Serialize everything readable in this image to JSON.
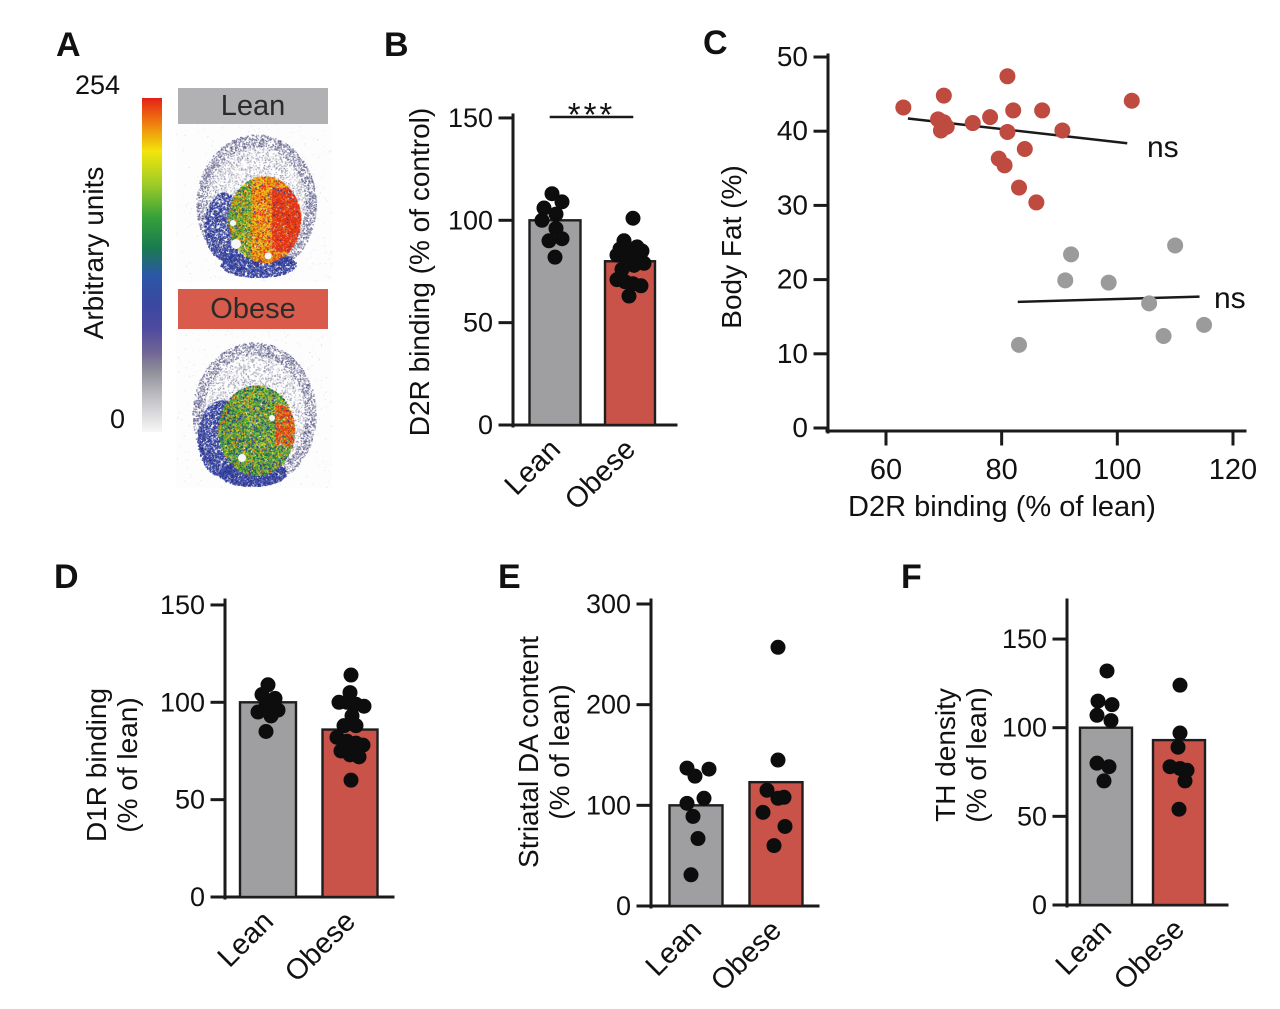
{
  "panel_letters": {
    "A": "A",
    "B": "B",
    "C": "C",
    "D": "D",
    "E": "E",
    "F": "F"
  },
  "colors": {
    "bar_gray": "#9F9FA1",
    "bar_red": "#C95349",
    "bar_stroke": "#1e1e1e",
    "dot_black": "#0d0d0d",
    "scatter_red": "#BF4A3F",
    "scatter_gray": "#9B9B9B",
    "header_gray": "#B1B1B3",
    "header_red": "#D95B4B",
    "axis_black": "#1a1a1a"
  },
  "panelA": {
    "letter": "A",
    "colorbar": {
      "max_label": "254",
      "min_label": "0",
      "axis_label": "Arbitrary units"
    },
    "images": [
      {
        "label": "Lean",
        "header_color": "#B1B1B3",
        "style": "lean"
      },
      {
        "label": "Obese",
        "header_color": "#D95B4B",
        "style": "obese"
      }
    ]
  },
  "chart_data": [
    {
      "panel": "B",
      "type": "bar",
      "ylabel_lines": [
        "D2R binding (% of control)"
      ],
      "categories": [
        "Lean",
        "Obese"
      ],
      "values": [
        100,
        80
      ],
      "bar_colors": [
        "#9F9FA1",
        "#C95349"
      ],
      "yticks": [
        0,
        50,
        100,
        150
      ],
      "ylim": [
        0,
        150
      ],
      "significance": "***",
      "points": [
        [
          [
            113,
            -3
          ],
          [
            109,
            7
          ],
          [
            106,
            -11
          ],
          [
            103,
            1
          ],
          [
            100,
            -13
          ],
          [
            96,
            1
          ],
          [
            91,
            7
          ],
          [
            90,
            -6
          ],
          [
            82,
            0
          ]
        ],
        [
          [
            101,
            3
          ],
          [
            90,
            -6
          ],
          [
            87,
            7
          ],
          [
            86,
            -10
          ],
          [
            85,
            12
          ],
          [
            84,
            0
          ],
          [
            83,
            -13
          ],
          [
            82,
            10
          ],
          [
            80,
            -3
          ],
          [
            79,
            14
          ],
          [
            78,
            4
          ],
          [
            76,
            -8
          ],
          [
            71,
            -13
          ],
          [
            70,
            -5
          ],
          [
            69,
            3
          ],
          [
            68,
            11
          ],
          [
            63,
            -1
          ]
        ]
      ]
    },
    {
      "panel": "C",
      "type": "scatter",
      "xlabel": "D2R binding (% of lean)",
      "ylabel": "Body Fat (%)",
      "xticks": [
        60,
        80,
        100,
        120
      ],
      "yticks": [
        0,
        10,
        20,
        30,
        40,
        50
      ],
      "xlim": [
        50,
        122
      ],
      "ylim": [
        0,
        50
      ],
      "series": [
        {
          "name": "Obese",
          "color": "#BF4A3F",
          "annotation": "ns",
          "trend": [
            64,
            41.7,
            101.5,
            38.4
          ],
          "points": [
            [
              63,
              43.2
            ],
            [
              70,
              44.8
            ],
            [
              81,
              47.4
            ],
            [
              102.5,
              44.1
            ],
            [
              69,
              41.6
            ],
            [
              70,
              41.2
            ],
            [
              70.5,
              40.6
            ],
            [
              69.5,
              40.1
            ],
            [
              75,
              41.1
            ],
            [
              78,
              41.9
            ],
            [
              82,
              42.8
            ],
            [
              87,
              42.8
            ],
            [
              81,
              39.9
            ],
            [
              90.5,
              40.1
            ],
            [
              84,
              37.6
            ],
            [
              79.5,
              36.3
            ],
            [
              80.5,
              35.4
            ],
            [
              83,
              32.4
            ],
            [
              86,
              30.4
            ]
          ]
        },
        {
          "name": "Lean",
          "color": "#9B9B9B",
          "annotation": "ns",
          "trend": [
            83,
            17.0,
            114,
            17.7
          ],
          "points": [
            [
              92,
              23.4
            ],
            [
              110,
              24.6
            ],
            [
              91,
              19.9
            ],
            [
              98.5,
              19.6
            ],
            [
              105.5,
              16.8
            ],
            [
              115,
              13.9
            ],
            [
              108,
              12.4
            ],
            [
              83,
              11.2
            ]
          ]
        }
      ]
    },
    {
      "panel": "D",
      "type": "bar",
      "ylabel_lines": [
        "D1R binding",
        "(% of lean)"
      ],
      "categories": [
        "Lean",
        "Obese"
      ],
      "values": [
        100,
        86
      ],
      "bar_colors": [
        "#9F9FA1",
        "#C95349"
      ],
      "yticks": [
        0,
        50,
        100,
        150
      ],
      "ylim": [
        0,
        150
      ],
      "significance": "",
      "points": [
        [
          [
            109,
            0
          ],
          [
            104,
            -6
          ],
          [
            102,
            7
          ],
          [
            98,
            -2
          ],
          [
            96,
            10
          ],
          [
            95,
            -10
          ],
          [
            93,
            3
          ],
          [
            85,
            -2
          ]
        ],
        [
          [
            114,
            1
          ],
          [
            105,
            0
          ],
          [
            100,
            -11
          ],
          [
            100,
            -3
          ],
          [
            99,
            6
          ],
          [
            98,
            14
          ],
          [
            93,
            2
          ],
          [
            88,
            -6
          ],
          [
            88,
            6
          ],
          [
            82,
            -13
          ],
          [
            80,
            -3
          ],
          [
            79,
            6
          ],
          [
            78,
            13
          ],
          [
            75,
            -9
          ],
          [
            73,
            0
          ],
          [
            72,
            9
          ],
          [
            60,
            1
          ]
        ]
      ]
    },
    {
      "panel": "E",
      "type": "bar",
      "ylabel_lines": [
        "Striatal DA content",
        "(% of lean)"
      ],
      "categories": [
        "Lean",
        "Obese"
      ],
      "values": [
        100,
        123
      ],
      "bar_colors": [
        "#9F9FA1",
        "#C95349"
      ],
      "yticks": [
        0,
        100,
        200,
        300
      ],
      "ylim": [
        0,
        300
      ],
      "significance": "",
      "points": [
        [
          [
            137,
            -9
          ],
          [
            136,
            13
          ],
          [
            129,
            -1
          ],
          [
            107,
            8
          ],
          [
            102,
            -9
          ],
          [
            89,
            -3
          ],
          [
            67,
            2
          ],
          [
            31,
            -5
          ]
        ],
        [
          [
            257,
            2
          ],
          [
            145,
            2
          ],
          [
            115,
            -9
          ],
          [
            108,
            8
          ],
          [
            107,
            2
          ],
          [
            93,
            -13
          ],
          [
            79,
            9
          ],
          [
            60,
            -2
          ]
        ]
      ]
    },
    {
      "panel": "F",
      "type": "bar",
      "ylabel_lines": [
        "TH density",
        "(% of lean)"
      ],
      "categories": [
        "Lean",
        "Obese"
      ],
      "values": [
        100,
        93
      ],
      "bar_colors": [
        "#9F9FA1",
        "#C95349"
      ],
      "yticks": [
        0,
        50,
        100,
        150
      ],
      "ylim": [
        0,
        150
      ],
      "significance": "",
      "points": [
        [
          [
            132,
            1
          ],
          [
            115,
            -8
          ],
          [
            113,
            6
          ],
          [
            107,
            -9
          ],
          [
            104,
            5
          ],
          [
            80,
            -9
          ],
          [
            78,
            3
          ],
          [
            70,
            -2
          ]
        ],
        [
          [
            124,
            1
          ],
          [
            97,
            1
          ],
          [
            89,
            -1
          ],
          [
            78,
            -9
          ],
          [
            77,
            1
          ],
          [
            76,
            8
          ],
          [
            70,
            6
          ],
          [
            54,
            0
          ]
        ]
      ]
    }
  ]
}
